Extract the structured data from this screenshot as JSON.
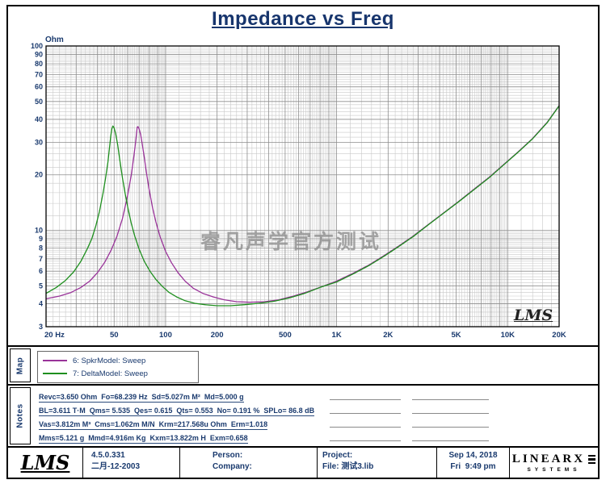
{
  "title": "Impedance vs Freq",
  "accent_navy": "#1a3a6e",
  "chart": {
    "watermark": "睿凡声学官方测试",
    "lms_mark": "LMS"
  },
  "chart_data": {
    "type": "line",
    "title": "Impedance vs Freq",
    "xlabel": "Hz",
    "ylabel": "Ohm",
    "x_scale": "log",
    "y_scale": "log",
    "xlim": [
      20,
      20000
    ],
    "ylim": [
      3,
      100
    ],
    "grid": true,
    "legend_position": "map-panel-below-chart",
    "x_ticks": [
      {
        "label": "20 Hz",
        "value": 20
      },
      {
        "label": "50",
        "value": 50
      },
      {
        "label": "100",
        "value": 100
      },
      {
        "label": "200",
        "value": 200
      },
      {
        "label": "500",
        "value": 500
      },
      {
        "label": "1K",
        "value": 1000
      },
      {
        "label": "2K",
        "value": 2000
      },
      {
        "label": "5K",
        "value": 5000
      },
      {
        "label": "10K",
        "value": 10000
      },
      {
        "label": "20K",
        "value": 20000
      }
    ],
    "y_ticks": [
      {
        "label": "100",
        "value": 100
      },
      {
        "label": "90",
        "value": 90
      },
      {
        "label": "80",
        "value": 80
      },
      {
        "label": "70",
        "value": 70
      },
      {
        "label": "60",
        "value": 60
      },
      {
        "label": "50",
        "value": 50
      },
      {
        "label": "40",
        "value": 40
      },
      {
        "label": "30",
        "value": 30
      },
      {
        "label": "20",
        "value": 20
      },
      {
        "label": "10",
        "value": 10
      },
      {
        "label": "9",
        "value": 9
      },
      {
        "label": "8",
        "value": 8
      },
      {
        "label": "7",
        "value": 7
      },
      {
        "label": "6",
        "value": 6
      },
      {
        "label": "5",
        "value": 5
      },
      {
        "label": "4",
        "value": 4
      },
      {
        "label": "3",
        "value": 3
      }
    ],
    "series": [
      {
        "name": "6: SpkrModel: Sweep",
        "color": "#993399",
        "points": [
          [
            20,
            4.25
          ],
          [
            24,
            4.4
          ],
          [
            28,
            4.6
          ],
          [
            32,
            4.9
          ],
          [
            36,
            5.3
          ],
          [
            40,
            5.9
          ],
          [
            44,
            6.7
          ],
          [
            48,
            7.8
          ],
          [
            52,
            9.3
          ],
          [
            56,
            11.6
          ],
          [
            60,
            15.5
          ],
          [
            63,
            20
          ],
          [
            65,
            24.5
          ],
          [
            66.5,
            29
          ],
          [
            67.5,
            33
          ],
          [
            68.2,
            36.3
          ],
          [
            69,
            36.5
          ],
          [
            70,
            35.5
          ],
          [
            71.5,
            33
          ],
          [
            73,
            29.5
          ],
          [
            75,
            25
          ],
          [
            77,
            21
          ],
          [
            80,
            16.8
          ],
          [
            84,
            13.2
          ],
          [
            88,
            11
          ],
          [
            93,
            9.2
          ],
          [
            100,
            7.7
          ],
          [
            108,
            6.7
          ],
          [
            118,
            5.9
          ],
          [
            130,
            5.3
          ],
          [
            145,
            4.85
          ],
          [
            165,
            4.55
          ],
          [
            190,
            4.35
          ],
          [
            220,
            4.2
          ],
          [
            260,
            4.1
          ],
          [
            310,
            4.07
          ],
          [
            380,
            4.1
          ],
          [
            460,
            4.2
          ],
          [
            560,
            4.4
          ],
          [
            680,
            4.65
          ],
          [
            820,
            4.95
          ],
          [
            1000,
            5.3
          ],
          [
            1250,
            5.85
          ],
          [
            1550,
            6.5
          ],
          [
            1900,
            7.3
          ],
          [
            2300,
            8.2
          ],
          [
            2800,
            9.3
          ],
          [
            3500,
            10.9
          ],
          [
            4300,
            12.6
          ],
          [
            5200,
            14.4
          ],
          [
            6400,
            16.8
          ],
          [
            7800,
            19.4
          ],
          [
            9500,
            22.8
          ],
          [
            11500,
            26.6
          ],
          [
            14000,
            31.5
          ],
          [
            17000,
            38.5
          ],
          [
            20000,
            47.5
          ]
        ]
      },
      {
        "name": "7: DeltaModel: Sweep",
        "color": "#1e8f1e",
        "points": [
          [
            20,
            4.55
          ],
          [
            23,
            4.9
          ],
          [
            26,
            5.35
          ],
          [
            29,
            5.95
          ],
          [
            32,
            6.8
          ],
          [
            35,
            8.0
          ],
          [
            37,
            9.0
          ],
          [
            39,
            10.5
          ],
          [
            41,
            12.6
          ],
          [
            43,
            15.8
          ],
          [
            44.5,
            19
          ],
          [
            46,
            23.5
          ],
          [
            47,
            28
          ],
          [
            47.8,
            32.5
          ],
          [
            48.5,
            35.5
          ],
          [
            49.2,
            36.8
          ],
          [
            50,
            36
          ],
          [
            51,
            33.5
          ],
          [
            52.5,
            29
          ],
          [
            54,
            24
          ],
          [
            56,
            19.2
          ],
          [
            58,
            15.8
          ],
          [
            60.5,
            12.9
          ],
          [
            63,
            10.9
          ],
          [
            66,
            9.3
          ],
          [
            70,
            7.9
          ],
          [
            75,
            6.8
          ],
          [
            81,
            6.0
          ],
          [
            88,
            5.4
          ],
          [
            96,
            4.95
          ],
          [
            105,
            4.6
          ],
          [
            116,
            4.35
          ],
          [
            130,
            4.15
          ],
          [
            148,
            4.02
          ],
          [
            170,
            3.95
          ],
          [
            200,
            3.9
          ],
          [
            240,
            3.9
          ],
          [
            290,
            3.95
          ],
          [
            350,
            4.02
          ],
          [
            430,
            4.12
          ],
          [
            530,
            4.3
          ],
          [
            650,
            4.55
          ],
          [
            800,
            4.9
          ],
          [
            1000,
            5.25
          ],
          [
            1250,
            5.8
          ],
          [
            1550,
            6.45
          ],
          [
            1900,
            7.25
          ],
          [
            2300,
            8.15
          ],
          [
            2800,
            9.25
          ],
          [
            3500,
            10.85
          ],
          [
            4300,
            12.55
          ],
          [
            5200,
            14.35
          ],
          [
            6400,
            16.7
          ],
          [
            7800,
            19.3
          ],
          [
            9500,
            22.7
          ],
          [
            11500,
            26.5
          ],
          [
            14000,
            31.4
          ],
          [
            17000,
            38.3
          ],
          [
            20000,
            47.3
          ]
        ]
      }
    ]
  },
  "map_panel": {
    "tab_label": "Map",
    "legend": [
      {
        "label": "6: SpkrModel: Sweep",
        "color": "#993399"
      },
      {
        "label": "7: DeltaModel: Sweep",
        "color": "#1e8f1e"
      }
    ]
  },
  "notes_panel": {
    "tab_label": "Notes",
    "lines": [
      "Revc=3.650 Ohm  Fo=68.239 Hz  Sd=5.027m M²  Md=5.000 g",
      "BL=3.611 T·M  Qms= 5.535  Qes= 0.615  Qts= 0.553  No= 0.191 %  SPLo= 86.8 dB",
      "Vas=3.812m M³  Cms=1.062m M/N  Krm=217.568u Ohm  Erm=1.018",
      "Mms=5.121 g  Mmd=4.916m Kg  Kxm=13.822m H  Exm=0.658"
    ]
  },
  "footer": {
    "logo": "LMS",
    "version": "4.5.0.331",
    "version_date": "二月-12-2003",
    "person_label": "Person:",
    "company_label": "Company:",
    "project_label": "Project:",
    "file_label": "File: 测试3.lib",
    "date": "Sep 14, 2018",
    "time": "Fri  9:49 pm",
    "brand_top": "LINEARX",
    "brand_bottom": "SYSTEMS"
  }
}
